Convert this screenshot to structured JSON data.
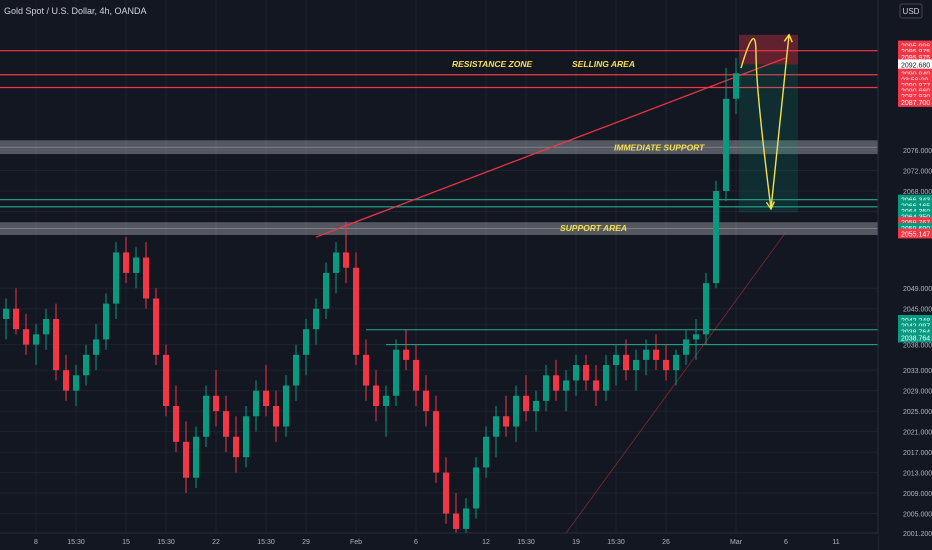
{
  "header": {
    "symbol_title": "Gold Spot / U.S. Dollar, 4h, OANDA",
    "currency_button": "USD"
  },
  "annotations": {
    "resistance_zone": "RESISTANCE ZONE",
    "selling_area": "SELLING AREA",
    "immediate_support": "IMMEDIATE SUPPORT",
    "support_area": "SUPPORT AREA"
  },
  "colors": {
    "background": "#131722",
    "bull": "#089981",
    "bear": "#f23645",
    "resistance_line": "#f23645",
    "support_line": "#22ab94",
    "zone_fill": "#ffffff",
    "annotation_text": "#f4e04d",
    "projection_arrow": "#f4e04d"
  },
  "chart_data": {
    "type": "candlestick",
    "title": "Gold Spot / U.S. Dollar, 4h, OANDA",
    "currency": "USD",
    "y_ticks": [
      2001.2,
      2005.0,
      2009.0,
      2013.0,
      2017.0,
      2021.0,
      2025.0,
      2029.0,
      2033.0,
      2038.0,
      2042.0,
      2045.0,
      2049.0,
      2064.0,
      2068.0,
      2072.0,
      2076.0
    ],
    "y_tick_labels": [
      "2001.200",
      "2005.000",
      "2009.000",
      "2013.000",
      "2017.000",
      "2021.000",
      "2025.000",
      "2029.000",
      "2033.000",
      "2038.000",
      "2042.000",
      "2045.000",
      "2049.000",
      "2064.000",
      "2068.000",
      "2072.000",
      "2076.000"
    ],
    "x_ticks": [
      {
        "label": "8",
        "i": 3
      },
      {
        "label": "15:30",
        "i": 7
      },
      {
        "label": "15",
        "i": 12
      },
      {
        "label": "15:30",
        "i": 16
      },
      {
        "label": "22",
        "i": 21
      },
      {
        "label": "15:30",
        "i": 26
      },
      {
        "label": "29",
        "i": 30
      },
      {
        "label": "Feb",
        "i": 35
      },
      {
        "label": "6",
        "i": 41
      },
      {
        "label": "12",
        "i": 48
      },
      {
        "label": "15:30",
        "i": 52
      },
      {
        "label": "19",
        "i": 57
      },
      {
        "label": "15:30",
        "i": 61
      },
      {
        "label": "26",
        "i": 66
      },
      {
        "label": "Mar",
        "i": 73
      }
    ],
    "future_x_ticks": [
      {
        "label": "6",
        "offset": 5
      },
      {
        "label": "11",
        "offset": 10
      }
    ],
    "candles": [
      [
        2043,
        2047,
        2039,
        2045
      ],
      [
        2045,
        2049,
        2040,
        2041
      ],
      [
        2041,
        2044,
        2036,
        2038
      ],
      [
        2038,
        2042,
        2034,
        2040
      ],
      [
        2040,
        2045,
        2037,
        2043
      ],
      [
        2043,
        2046,
        2031,
        2033
      ],
      [
        2033,
        2036,
        2027,
        2029
      ],
      [
        2029,
        2034,
        2026,
        2032
      ],
      [
        2032,
        2038,
        2030,
        2036
      ],
      [
        2036,
        2042,
        2033,
        2039
      ],
      [
        2039,
        2048,
        2037,
        2046
      ],
      [
        2046,
        2058,
        2043,
        2056
      ],
      [
        2056,
        2059,
        2050,
        2052
      ],
      [
        2052,
        2057,
        2049,
        2055
      ],
      [
        2055,
        2058,
        2045,
        2047
      ],
      [
        2047,
        2049,
        2034,
        2036
      ],
      [
        2036,
        2038,
        2024,
        2026
      ],
      [
        2026,
        2030,
        2017,
        2019
      ],
      [
        2019,
        2023,
        2009,
        2012
      ],
      [
        2012,
        2022,
        2010,
        2020
      ],
      [
        2020,
        2030,
        2018,
        2028
      ],
      [
        2028,
        2033,
        2022,
        2025
      ],
      [
        2025,
        2028,
        2017,
        2020
      ],
      [
        2020,
        2024,
        2013,
        2016
      ],
      [
        2016,
        2026,
        2014,
        2024
      ],
      [
        2024,
        2031,
        2021,
        2029
      ],
      [
        2029,
        2034,
        2024,
        2026
      ],
      [
        2026,
        2029,
        2019,
        2022
      ],
      [
        2022,
        2032,
        2020,
        2030
      ],
      [
        2030,
        2038,
        2027,
        2036
      ],
      [
        2036,
        2043,
        2032,
        2041
      ],
      [
        2041,
        2047,
        2038,
        2045
      ],
      [
        2045,
        2054,
        2043,
        2052
      ],
      [
        2052,
        2058,
        2048,
        2056
      ],
      [
        2056,
        2062,
        2050,
        2053
      ],
      [
        2053,
        2056,
        2034,
        2036
      ],
      [
        2036,
        2039,
        2027,
        2030
      ],
      [
        2030,
        2033,
        2023,
        2026
      ],
      [
        2026,
        2030,
        2020,
        2028
      ],
      [
        2028,
        2039,
        2026,
        2037
      ],
      [
        2037,
        2041,
        2033,
        2035
      ],
      [
        2035,
        2038,
        2026,
        2029
      ],
      [
        2029,
        2032,
        2022,
        2025
      ],
      [
        2025,
        2028,
        2011,
        2013
      ],
      [
        2013,
        2016,
        2003,
        2005
      ],
      [
        2005,
        2009,
        1998,
        2002
      ],
      [
        2002,
        2008,
        2000,
        2006
      ],
      [
        2006,
        2016,
        2004,
        2014
      ],
      [
        2014,
        2022,
        2012,
        2020
      ],
      [
        2020,
        2026,
        2016,
        2024
      ],
      [
        2024,
        2028,
        2020,
        2022
      ],
      [
        2022,
        2030,
        2019,
        2028
      ],
      [
        2028,
        2032,
        2023,
        2025
      ],
      [
        2025,
        2029,
        2021,
        2027
      ],
      [
        2027,
        2034,
        2025,
        2032
      ],
      [
        2032,
        2035,
        2027,
        2029
      ],
      [
        2029,
        2033,
        2025,
        2031
      ],
      [
        2031,
        2036,
        2028,
        2034
      ],
      [
        2034,
        2036,
        2029,
        2031
      ],
      [
        2031,
        2034,
        2026,
        2029
      ],
      [
        2029,
        2036,
        2027,
        2034
      ],
      [
        2034,
        2038,
        2030,
        2036
      ],
      [
        2036,
        2039,
        2031,
        2033
      ],
      [
        2033,
        2037,
        2029,
        2035
      ],
      [
        2035,
        2039,
        2032,
        2037
      ],
      [
        2037,
        2040,
        2033,
        2035
      ],
      [
        2035,
        2038,
        2031,
        2033
      ],
      [
        2033,
        2037,
        2030,
        2036
      ],
      [
        2036,
        2041,
        2034,
        2039
      ],
      [
        2039,
        2043,
        2035,
        2040
      ],
      [
        2040,
        2052,
        2038,
        2050
      ],
      [
        2050,
        2070,
        2049,
        2068
      ],
      [
        2068,
        2092,
        2066,
        2086
      ],
      [
        2086,
        2094,
        2083,
        2091
      ]
    ],
    "horizontal_levels": [
      {
        "price": 2095.4,
        "kind": "resistance"
      },
      {
        "price": 2090.7,
        "kind": "resistance"
      },
      {
        "price": 2088.2,
        "kind": "resistance"
      },
      {
        "price": 2066.3,
        "kind": "support"
      },
      {
        "price": 2064.9,
        "kind": "support"
      }
    ],
    "zones": [
      {
        "from": 2075.2,
        "to": 2077.9,
        "label_key": "immediate_support"
      },
      {
        "from": 2059.4,
        "to": 2061.9,
        "label_key": "support_area"
      }
    ],
    "breakout_levels": [
      {
        "price": 2040.9,
        "from_i": 36
      },
      {
        "price": 2038.0,
        "from_i": 38
      }
    ],
    "trendlines": [
      {
        "from": {
          "i": 31,
          "p": 2059.0
        },
        "to": {
          "i": 78,
          "p": 2094.0
        },
        "color_key": "resistance_line"
      },
      {
        "from": {
          "i": 55,
          "p": 1998.5
        },
        "to": {
          "i": 78,
          "p": 2060.0
        },
        "color_key": "resistance_line",
        "faint": true
      }
    ],
    "position_box": {
      "i_from": 73,
      "i_to": 78,
      "entry": 2092.7,
      "stop": 2098.5,
      "target": 2063.8
    },
    "projection_path": [
      {
        "i": 73.5,
        "p": 2092.0
      },
      {
        "i": 75.0,
        "p": 2096.0
      },
      {
        "i": 76.5,
        "p": 2064.5
      },
      {
        "i": 78.3,
        "p": 2098.5
      }
    ],
    "price_labels": [
      {
        "text": "2095.998",
        "price": 2096.4,
        "kind": "bear"
      },
      {
        "text": "2095.975",
        "price": 2095.3,
        "kind": "bear"
      },
      {
        "text": "2095.975",
        "price": 2094.2,
        "kind": "bear"
      },
      {
        "text": "2092.680",
        "price": 2092.7,
        "kind": "current"
      },
      {
        "text": "2090.940",
        "price": 2090.9,
        "kind": "bear"
      },
      {
        "text": "03:58:09",
        "price": 2089.8,
        "kind": "bear"
      },
      {
        "text": "2090.877",
        "price": 2088.7,
        "kind": "bear"
      },
      {
        "text": "2090.660",
        "price": 2087.6,
        "kind": "bear"
      },
      {
        "text": "2087.930",
        "price": 2086.5,
        "kind": "bear"
      },
      {
        "text": "2087.700",
        "price": 2085.4,
        "kind": "bear"
      },
      {
        "text": "2066.343",
        "price": 2066.3,
        "kind": "bull"
      },
      {
        "text": "2066.165",
        "price": 2065.2,
        "kind": "bull"
      },
      {
        "text": "2064.350",
        "price": 2064.1,
        "kind": "bull"
      },
      {
        "text": "2064.350",
        "price": 2063.0,
        "kind": "bull"
      },
      {
        "text": "2059.767",
        "price": 2061.9,
        "kind": "bear"
      },
      {
        "text": "2059.690",
        "price": 2060.8,
        "kind": "bull"
      },
      {
        "text": "2055.147",
        "price": 2059.7,
        "kind": "bear"
      },
      {
        "text": "2042.248",
        "price": 2042.8,
        "kind": "bull"
      },
      {
        "text": "2042.097",
        "price": 2041.7,
        "kind": "bull"
      },
      {
        "text": "2038.764",
        "price": 2040.6,
        "kind": "bull"
      },
      {
        "text": "2038.764",
        "price": 2039.4,
        "kind": "bull"
      }
    ]
  }
}
